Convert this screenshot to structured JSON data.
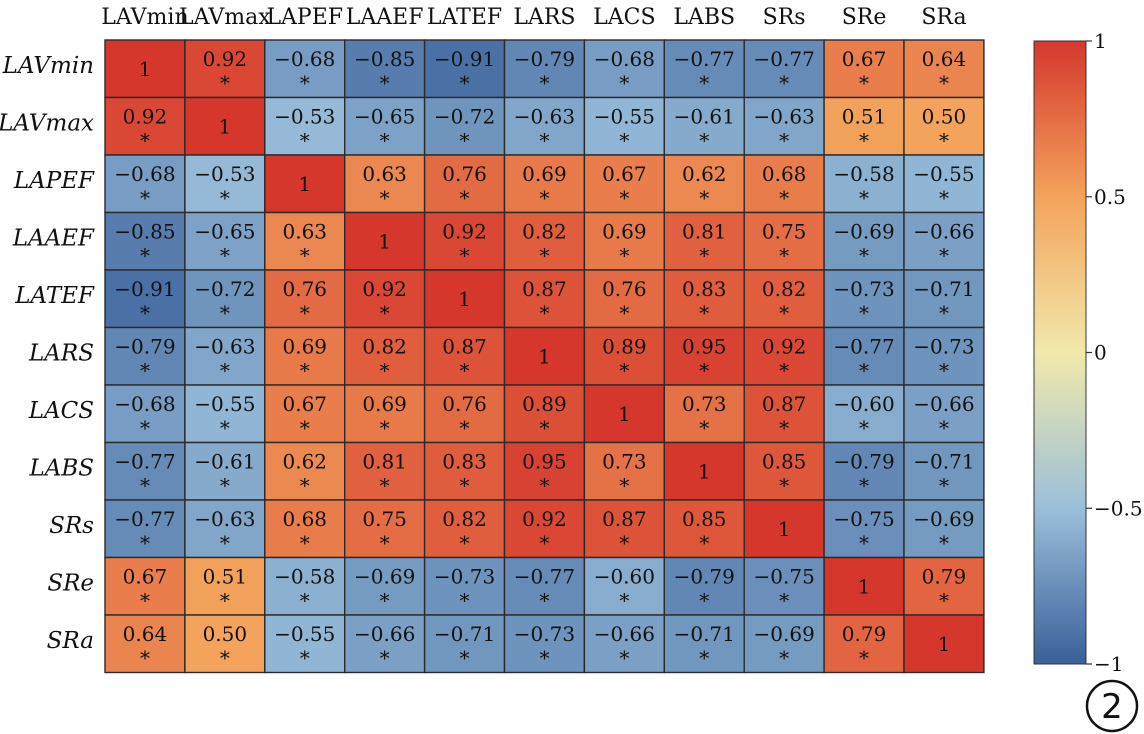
{
  "chart_data": {
    "type": "heatmap",
    "x_labels": [
      "LAVmin",
      "LAVmax",
      "LAPEF",
      "LAAEF",
      "LATEF",
      "LARS",
      "LACS",
      "LABS",
      "SRs",
      "SRe",
      "SRa"
    ],
    "y_labels": [
      "LAVmin",
      "LAVmax",
      "LAPEF",
      "LAAEF",
      "LATEF",
      "LARS",
      "LACS",
      "LABS",
      "SRs",
      "SRe",
      "SRa"
    ],
    "values": [
      [
        1,
        0.92,
        -0.68,
        -0.85,
        -0.91,
        -0.79,
        -0.68,
        -0.77,
        -0.77,
        0.67,
        0.64
      ],
      [
        0.92,
        1,
        -0.53,
        -0.65,
        -0.72,
        -0.63,
        -0.55,
        -0.61,
        -0.63,
        0.51,
        0.5
      ],
      [
        -0.68,
        -0.53,
        1,
        0.63,
        0.76,
        0.69,
        0.67,
        0.62,
        0.68,
        -0.58,
        -0.55
      ],
      [
        -0.85,
        -0.65,
        0.63,
        1,
        0.92,
        0.82,
        0.69,
        0.81,
        0.75,
        -0.69,
        -0.66
      ],
      [
        -0.91,
        -0.72,
        0.76,
        0.92,
        1,
        0.87,
        0.76,
        0.83,
        0.82,
        -0.73,
        -0.71
      ],
      [
        -0.79,
        -0.63,
        0.69,
        0.82,
        0.87,
        1,
        0.89,
        0.95,
        0.92,
        -0.77,
        -0.73
      ],
      [
        -0.68,
        -0.55,
        0.67,
        0.69,
        0.76,
        0.89,
        1,
        0.73,
        0.87,
        -0.6,
        -0.66
      ],
      [
        -0.77,
        -0.61,
        0.62,
        0.81,
        0.83,
        0.95,
        0.73,
        1,
        0.85,
        -0.79,
        -0.71
      ],
      [
        -0.77,
        -0.63,
        0.68,
        0.75,
        0.82,
        0.92,
        0.87,
        0.85,
        1,
        -0.75,
        -0.69
      ],
      [
        0.67,
        0.51,
        -0.58,
        -0.69,
        -0.73,
        -0.77,
        -0.6,
        -0.79,
        -0.75,
        1,
        0.79
      ],
      [
        0.64,
        0.5,
        -0.55,
        -0.66,
        -0.71,
        -0.73,
        -0.66,
        -0.71,
        -0.69,
        0.79,
        1
      ]
    ],
    "value_labels": [
      [
        "1",
        "0.92",
        "−0.68",
        "−0.85",
        "−0.91",
        "−0.79",
        "−0.68",
        "−0.77",
        "−0.77",
        "0.67",
        "0.64"
      ],
      [
        "0.92",
        "1",
        "−0.53",
        "−0.65",
        "−0.72",
        "−0.63",
        "−0.55",
        "−0.61",
        "−0.63",
        "0.51",
        "0.50"
      ],
      [
        "−0.68",
        "−0.53",
        "1",
        "0.63",
        "0.76",
        "0.69",
        "0.67",
        "0.62",
        "0.68",
        "−0.58",
        "−0.55"
      ],
      [
        "−0.85",
        "−0.65",
        "0.63",
        "1",
        "0.92",
        "0.82",
        "0.69",
        "0.81",
        "0.75",
        "−0.69",
        "−0.66"
      ],
      [
        "−0.91",
        "−0.72",
        "0.76",
        "0.92",
        "1",
        "0.87",
        "0.76",
        "0.83",
        "0.82",
        "−0.73",
        "−0.71"
      ],
      [
        "−0.79",
        "−0.63",
        "0.69",
        "0.82",
        "0.87",
        "1",
        "0.89",
        "0.95",
        "0.92",
        "−0.77",
        "−0.73"
      ],
      [
        "−0.68",
        "−0.55",
        "0.67",
        "0.69",
        "0.76",
        "0.89",
        "1",
        "0.73",
        "0.87",
        "−0.60",
        "−0.66"
      ],
      [
        "−0.77",
        "−0.61",
        "0.62",
        "0.81",
        "0.83",
        "0.95",
        "0.73",
        "1",
        "0.85",
        "−0.79",
        "−0.71"
      ],
      [
        "−0.77",
        "−0.63",
        "0.68",
        "0.75",
        "0.82",
        "0.92",
        "0.87",
        "0.85",
        "1",
        "−0.75",
        "−0.69"
      ],
      [
        "0.67",
        "0.51",
        "−0.58",
        "−0.69",
        "−0.73",
        "−0.77",
        "−0.60",
        "−0.79",
        "−0.75",
        "1",
        "0.79"
      ],
      [
        "0.64",
        "0.50",
        "−0.55",
        "−0.66",
        "−0.71",
        "−0.73",
        "−0.66",
        "−0.71",
        "−0.69",
        "0.79",
        "1"
      ]
    ],
    "significance_marker": "*",
    "colorbar": {
      "range": [
        -1,
        1
      ],
      "ticks": [
        1,
        0.5,
        0,
        -0.5,
        -1
      ],
      "tick_labels": [
        "1",
        "0.5",
        "0",
        "−0.5",
        "−1"
      ],
      "colors": [
        "#3a5f99",
        "#9bbfda",
        "#f1e9ab",
        "#f3a35c",
        "#d5372d"
      ]
    },
    "title": "",
    "xlabel": "",
    "ylabel": ""
  },
  "panel_badge": "2"
}
